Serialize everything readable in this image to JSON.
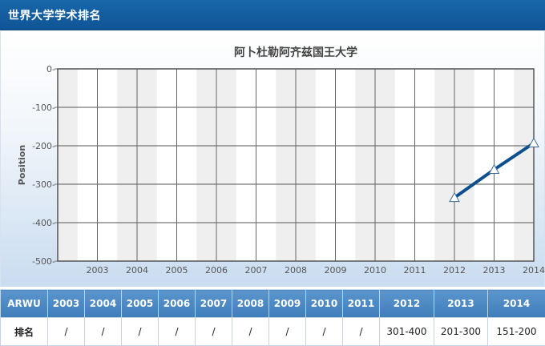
{
  "header": {
    "title": "世界大学学术排名"
  },
  "colors": {
    "header_bg": "#0f5596",
    "line": "#0d4f8f",
    "table_head": "#4a86c2"
  },
  "chart_data": {
    "type": "line",
    "title": "阿卜杜勒阿齐兹国王大学",
    "xlabel": "",
    "ylabel": "Position",
    "categories": [
      "2003",
      "2004",
      "2005",
      "2006",
      "2007",
      "2008",
      "2009",
      "2010",
      "2011",
      "2012",
      "2013",
      "2014"
    ],
    "y_ticks": [
      "0-",
      "-100-",
      "-200-",
      "-300-",
      "-400-",
      "-500-"
    ],
    "ylim": [
      -500,
      0
    ],
    "grid": true,
    "series": [
      {
        "values": [
          null,
          null,
          null,
          null,
          null,
          null,
          null,
          null,
          null,
          -335,
          -262,
          -193
        ],
        "marker": "triangle"
      }
    ]
  },
  "table": {
    "columns": [
      "ARWU",
      "2003",
      "2004",
      "2005",
      "2006",
      "2007",
      "2008",
      "2009",
      "2010",
      "2011",
      "2012",
      "2013",
      "2014"
    ],
    "row_label": "排名",
    "values": [
      "/",
      "/",
      "/",
      "/",
      "/",
      "/",
      "/",
      "/",
      "/",
      "301-400",
      "201-300",
      "151-200"
    ]
  }
}
